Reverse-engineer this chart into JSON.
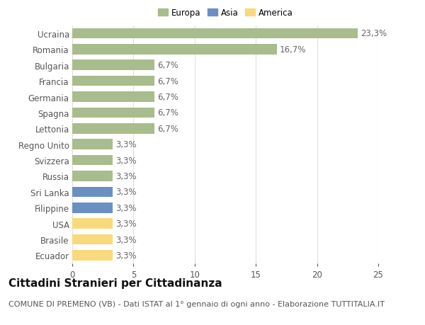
{
  "categories": [
    "Ecuador",
    "Brasile",
    "USA",
    "Filippine",
    "Sri Lanka",
    "Russia",
    "Svizzera",
    "Regno Unito",
    "Lettonia",
    "Spagna",
    "Germania",
    "Francia",
    "Bulgaria",
    "Romania",
    "Ucraina"
  ],
  "values": [
    3.3,
    3.3,
    3.3,
    3.3,
    3.3,
    3.3,
    3.3,
    3.3,
    6.7,
    6.7,
    6.7,
    6.7,
    6.7,
    16.7,
    23.3
  ],
  "bar_colors": [
    "#f9d97c",
    "#f9d97c",
    "#f9d97c",
    "#6b8fc2",
    "#6b8fc2",
    "#a8bc8d",
    "#a8bc8d",
    "#a8bc8d",
    "#a8bc8d",
    "#a8bc8d",
    "#a8bc8d",
    "#a8bc8d",
    "#a8bc8d",
    "#a8bc8d",
    "#a8bc8d"
  ],
  "labels": [
    "3,3%",
    "3,3%",
    "3,3%",
    "3,3%",
    "3,3%",
    "3,3%",
    "3,3%",
    "3,3%",
    "6,7%",
    "6,7%",
    "6,7%",
    "6,7%",
    "6,7%",
    "16,7%",
    "23,3%"
  ],
  "legend": [
    {
      "label": "Europa",
      "color": "#a8bc8d"
    },
    {
      "label": "Asia",
      "color": "#6b8fc2"
    },
    {
      "label": "America",
      "color": "#f9d97c"
    }
  ],
  "title": "Cittadini Stranieri per Cittadinanza",
  "subtitle": "COMUNE DI PREMENO (VB) - Dati ISTAT al 1° gennaio di ogni anno - Elaborazione TUTTITALIA.IT",
  "xlim": [
    0,
    25
  ],
  "xticks": [
    0,
    5,
    10,
    15,
    20,
    25
  ],
  "background_color": "#ffffff",
  "grid_color": "#e0e0e0",
  "bar_height": 0.65,
  "label_fontsize": 8.5,
  "tick_fontsize": 8.5,
  "title_fontsize": 11,
  "subtitle_fontsize": 8
}
